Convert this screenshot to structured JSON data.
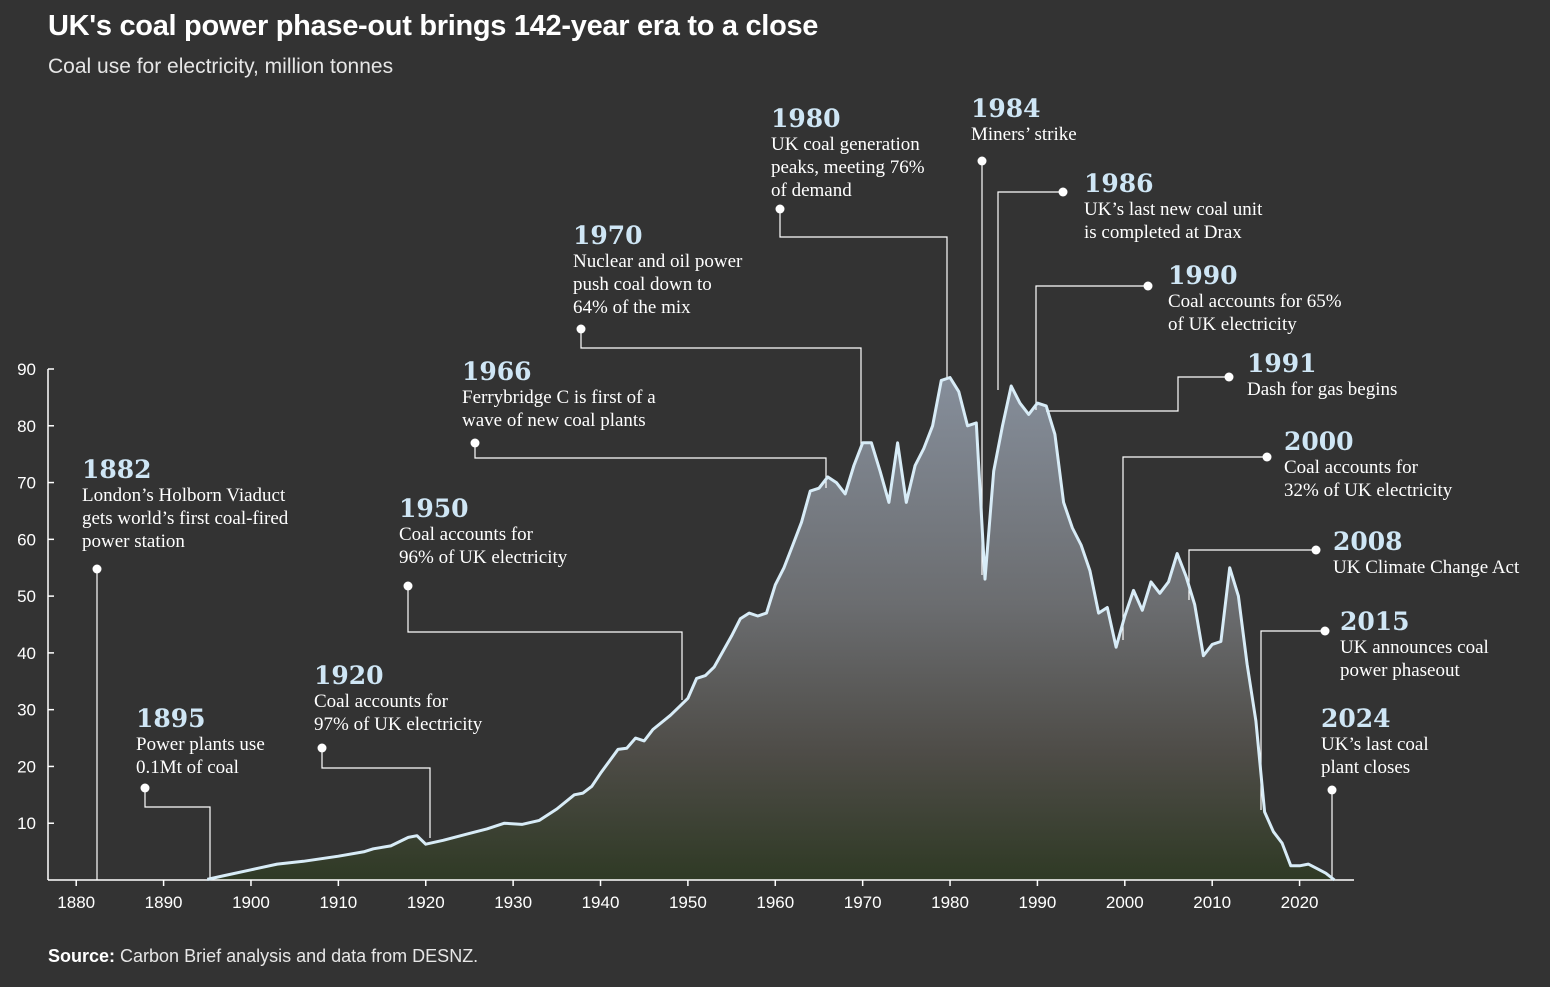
{
  "header": {
    "title": "UK's coal power phase-out brings 142-year era to a close",
    "subtitle": "Coal use for electricity, million tonnes"
  },
  "footer": {
    "source_label": "Source:",
    "source_text": " Carbon Brief analysis and data from DESNZ."
  },
  "colors": {
    "background": "#333333",
    "line": "#d8ecf7",
    "annotation_year": "#cfe6f5",
    "text": "#ffffff"
  },
  "chart_data": {
    "type": "area",
    "title": "UK's coal power phase-out brings 142-year era to a close",
    "ylabel": "Coal use for electricity, million tonnes",
    "xlabel": "",
    "xlim": [
      1877,
      2026
    ],
    "ylim": [
      0,
      90
    ],
    "x_ticks": [
      1880,
      1890,
      1900,
      1910,
      1920,
      1930,
      1940,
      1950,
      1960,
      1970,
      1980,
      1990,
      2000,
      2010,
      2020
    ],
    "y_ticks": [
      10,
      20,
      30,
      40,
      50,
      60,
      70,
      80,
      90
    ],
    "grid": false,
    "series": [
      {
        "points": [
          [
            1895,
            0.1
          ],
          [
            1897,
            0.8
          ],
          [
            1900,
            1.8
          ],
          [
            1903,
            2.8
          ],
          [
            1906,
            3.3
          ],
          [
            1910,
            4.2
          ],
          [
            1913,
            5.0
          ],
          [
            1914,
            5.5
          ],
          [
            1916,
            6.0
          ],
          [
            1918,
            7.5
          ],
          [
            1919,
            7.8
          ],
          [
            1920,
            6.3
          ],
          [
            1922,
            7.0
          ],
          [
            1925,
            8.2
          ],
          [
            1927,
            9.0
          ],
          [
            1929,
            10.0
          ],
          [
            1931,
            9.8
          ],
          [
            1933,
            10.5
          ],
          [
            1935,
            12.5
          ],
          [
            1937,
            15.0
          ],
          [
            1938,
            15.3
          ],
          [
            1939,
            16.5
          ],
          [
            1940,
            18.8
          ],
          [
            1942,
            23.0
          ],
          [
            1943,
            23.2
          ],
          [
            1944,
            25.0
          ],
          [
            1945,
            24.5
          ],
          [
            1946,
            26.5
          ],
          [
            1948,
            29.0
          ],
          [
            1949,
            30.5
          ],
          [
            1950,
            32.0
          ],
          [
            1951,
            35.5
          ],
          [
            1952,
            36.0
          ],
          [
            1953,
            37.5
          ],
          [
            1955,
            43.0
          ],
          [
            1956,
            46.0
          ],
          [
            1957,
            47.0
          ],
          [
            1958,
            46.5
          ],
          [
            1959,
            47.0
          ],
          [
            1960,
            52.0
          ],
          [
            1961,
            55.0
          ],
          [
            1962,
            59.0
          ],
          [
            1963,
            63.0
          ],
          [
            1964,
            68.5
          ],
          [
            1965,
            69.0
          ],
          [
            1966,
            71.0
          ],
          [
            1967,
            70.0
          ],
          [
            1968,
            68.0
          ],
          [
            1969,
            73.0
          ],
          [
            1970,
            77.0
          ],
          [
            1971,
            77.0
          ],
          [
            1972,
            72.0
          ],
          [
            1973,
            66.5
          ],
          [
            1974,
            77.0
          ],
          [
            1975,
            66.5
          ],
          [
            1976,
            73.0
          ],
          [
            1977,
            76.0
          ],
          [
            1978,
            80.0
          ],
          [
            1979,
            88.0
          ],
          [
            1980,
            88.5
          ],
          [
            1981,
            86.0
          ],
          [
            1982,
            80.0
          ],
          [
            1983,
            80.5
          ],
          [
            1984,
            53.0
          ],
          [
            1985,
            72.0
          ],
          [
            1986,
            80.0
          ],
          [
            1987,
            87.0
          ],
          [
            1988,
            84.0
          ],
          [
            1989,
            82.0
          ],
          [
            1990,
            84.0
          ],
          [
            1991,
            83.5
          ],
          [
            1992,
            78.5
          ],
          [
            1993,
            66.5
          ],
          [
            1994,
            62.0
          ],
          [
            1995,
            59.0
          ],
          [
            1996,
            54.5
          ],
          [
            1997,
            47.0
          ],
          [
            1998,
            48.0
          ],
          [
            1999,
            41.0
          ],
          [
            2000,
            46.5
          ],
          [
            2001,
            51.0
          ],
          [
            2002,
            47.5
          ],
          [
            2003,
            52.5
          ],
          [
            2004,
            50.5
          ],
          [
            2005,
            52.5
          ],
          [
            2006,
            57.5
          ],
          [
            2007,
            53.5
          ],
          [
            2008,
            48.5
          ],
          [
            2009,
            39.5
          ],
          [
            2010,
            41.5
          ],
          [
            2011,
            42.0
          ],
          [
            2012,
            55.0
          ],
          [
            2013,
            50.0
          ],
          [
            2014,
            38.0
          ],
          [
            2015,
            28.0
          ],
          [
            2016,
            12.0
          ],
          [
            2017,
            8.5
          ],
          [
            2018,
            6.5
          ],
          [
            2019,
            2.5
          ],
          [
            2020,
            2.5
          ],
          [
            2021,
            2.8
          ],
          [
            2022,
            2.0
          ],
          [
            2023,
            1.2
          ],
          [
            2024,
            0.0
          ]
        ]
      }
    ],
    "annotations": [
      {
        "year": "1882",
        "lines": [
          "London’s Holborn Viaduct",
          "gets world’s first coal-fired",
          "power station"
        ]
      },
      {
        "year": "1895",
        "lines": [
          "Power plants use",
          "0.1Mt of coal"
        ]
      },
      {
        "year": "1920",
        "lines": [
          "Coal accounts for",
          "97% of UK electricity"
        ]
      },
      {
        "year": "1950",
        "lines": [
          "Coal accounts for",
          "96% of UK electricity"
        ]
      },
      {
        "year": "1966",
        "lines": [
          "Ferrybridge C is first of a",
          "wave of new coal plants"
        ]
      },
      {
        "year": "1970",
        "lines": [
          "Nuclear and oil power",
          "push coal down to",
          "64% of the mix"
        ]
      },
      {
        "year": "1980",
        "lines": [
          "UK coal generation",
          "peaks, meeting 76%",
          "of demand"
        ]
      },
      {
        "year": "1984",
        "lines": [
          "Miners’ strike"
        ]
      },
      {
        "year": "1986",
        "lines": [
          "UK’s last new coal unit",
          "is completed at Drax"
        ]
      },
      {
        "year": "1990",
        "lines": [
          "Coal accounts for 65%",
          "of UK electricity"
        ]
      },
      {
        "year": "1991",
        "lines": [
          "Dash for gas begins"
        ]
      },
      {
        "year": "2000",
        "lines": [
          "Coal accounts for",
          "32% of UK electricity"
        ]
      },
      {
        "year": "2008",
        "lines": [
          "UK Climate Change Act"
        ]
      },
      {
        "year": "2015",
        "lines": [
          "UK announces coal",
          "power phaseout"
        ]
      },
      {
        "year": "2024",
        "lines": [
          "UK’s last coal",
          "plant closes"
        ]
      }
    ]
  }
}
